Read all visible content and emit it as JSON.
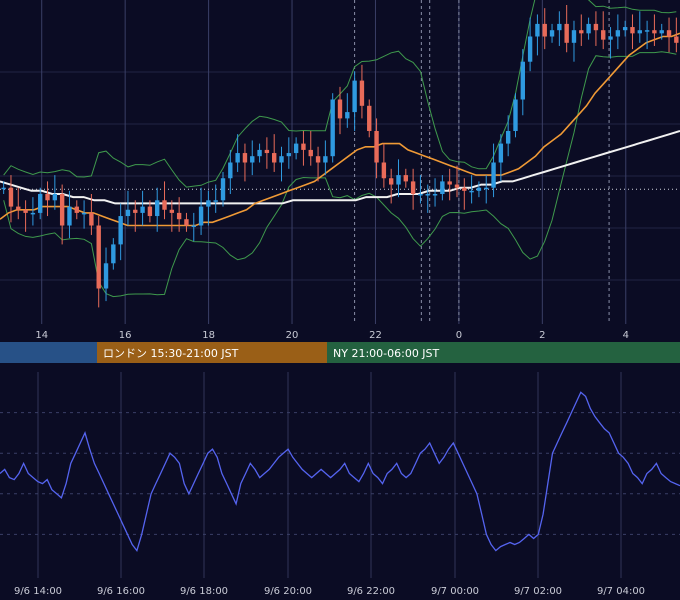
{
  "chart_data": [
    {
      "panel": "price",
      "type": "candlestick",
      "x_ticks": [
        "14",
        "16",
        "18",
        "20",
        "22",
        "0",
        "2",
        "4"
      ],
      "x_range_hours": [
        13,
        29.3
      ],
      "y_range": [
        0,
        100
      ],
      "reference_level": 41.5,
      "indicators": [
        "bollinger-bands",
        "moving-average",
        "long-moving-average"
      ],
      "series": [
        {
          "values": [
            42,
            36,
            35,
            34,
            34,
            40,
            38,
            40,
            30,
            36,
            34,
            34,
            30,
            10,
            18,
            24,
            33,
            35,
            34,
            36,
            33,
            38,
            35,
            34,
            32,
            30,
            30,
            36,
            38,
            38,
            45,
            50,
            53,
            50,
            52,
            54,
            53,
            50,
            52,
            53,
            56,
            54,
            52,
            50,
            52,
            70,
            64,
            66,
            76,
            68,
            60,
            50,
            45,
            43,
            46,
            44,
            40,
            40,
            40,
            40,
            44,
            43,
            42,
            41,
            41,
            42,
            42,
            50,
            56,
            60,
            70,
            82,
            90,
            94,
            90,
            92,
            94,
            88,
            92,
            91,
            94,
            92,
            89,
            90,
            92,
            93,
            91,
            92,
            92,
            91,
            92,
            90,
            88
          ]
        },
        {
          "values": [
            32,
            34,
            35,
            35,
            35,
            36,
            36,
            36,
            36,
            35,
            34,
            34,
            33,
            32,
            31,
            30,
            30,
            30,
            30,
            30,
            30,
            30,
            30,
            30,
            31,
            31,
            32,
            33,
            34,
            35,
            37,
            38,
            39,
            40,
            41,
            42,
            43,
            44,
            46,
            48,
            50,
            52,
            54,
            55,
            55,
            56,
            56,
            56,
            54,
            53,
            52,
            51,
            50,
            49,
            48,
            47,
            46,
            46,
            46,
            46,
            47,
            48,
            50,
            52,
            55,
            57,
            59,
            62,
            65,
            68,
            72,
            75,
            78,
            81,
            84,
            86,
            88,
            89,
            90,
            90,
            91
          ]
        },
        {
          "values": [
            44,
            43,
            42,
            41,
            41,
            40,
            40,
            39,
            39,
            38,
            38,
            37,
            37,
            37,
            37,
            37,
            37,
            37,
            37,
            37,
            37,
            37,
            37,
            37,
            37,
            37,
            37,
            37,
            38,
            38,
            38,
            38,
            38,
            38,
            38,
            39,
            39,
            39,
            40,
            40,
            40,
            41,
            41,
            41,
            42,
            42,
            43,
            43,
            44,
            44,
            45,
            46,
            47,
            48,
            49,
            50,
            51,
            52,
            53,
            54,
            55,
            56,
            57,
            58,
            59,
            60
          ]
        }
      ]
    },
    {
      "panel": "oscillator",
      "type": "line",
      "x_ticks": [
        "9/6 14:00",
        "9/6 16:00",
        "9/6 18:00",
        "9/6 20:00",
        "9/6 22:00",
        "9/7 00:00",
        "9/7 02:00",
        "9/7 04:00"
      ],
      "y_range": [
        0,
        100
      ],
      "series": [
        {
          "values": [
            50,
            52,
            48,
            47,
            50,
            55,
            50,
            48,
            46,
            45,
            47,
            42,
            40,
            38,
            45,
            55,
            60,
            65,
            70,
            62,
            55,
            50,
            45,
            40,
            35,
            30,
            25,
            20,
            15,
            12,
            20,
            30,
            40,
            45,
            50,
            55,
            60,
            58,
            55,
            45,
            40,
            45,
            50,
            55,
            60,
            62,
            58,
            50,
            45,
            40,
            35,
            45,
            50,
            55,
            52,
            48,
            50,
            52,
            55,
            58,
            60,
            62,
            58,
            55,
            52,
            50,
            48,
            50,
            52,
            50,
            48,
            50,
            52,
            55,
            50,
            48,
            46,
            50,
            55,
            50,
            48,
            45,
            50,
            52,
            55,
            50,
            48,
            50,
            55,
            60,
            62,
            65,
            60,
            55,
            58,
            62,
            65,
            60,
            55,
            50,
            45,
            40,
            30,
            20,
            15,
            12,
            14,
            15,
            16,
            15,
            16,
            18,
            20,
            18,
            20,
            30,
            45,
            60,
            65,
            70,
            75,
            80,
            85,
            90,
            88,
            82,
            78,
            75,
            72,
            70,
            65,
            60,
            58,
            55,
            50,
            48,
            45,
            50,
            52,
            55,
            50,
            48,
            46,
            45,
            44
          ]
        }
      ]
    }
  ],
  "sessions": [
    {
      "label": "",
      "color": "#275187"
    },
    {
      "label": "ロンドン 15:30-21:00 JST",
      "color": "#9a5f17"
    },
    {
      "label": "NY 21:00-06:00 JST",
      "color": "#246240"
    }
  ],
  "colors": {
    "background": "#0b0c24",
    "up": "#2f9ae0",
    "down": "#e86b59",
    "bollinger": "#3f9a4d",
    "moving_average": "#f09a36",
    "long_moving_average": "#f1f1f1",
    "oscillator": "#5564f0",
    "grid": "#3a3f66"
  }
}
